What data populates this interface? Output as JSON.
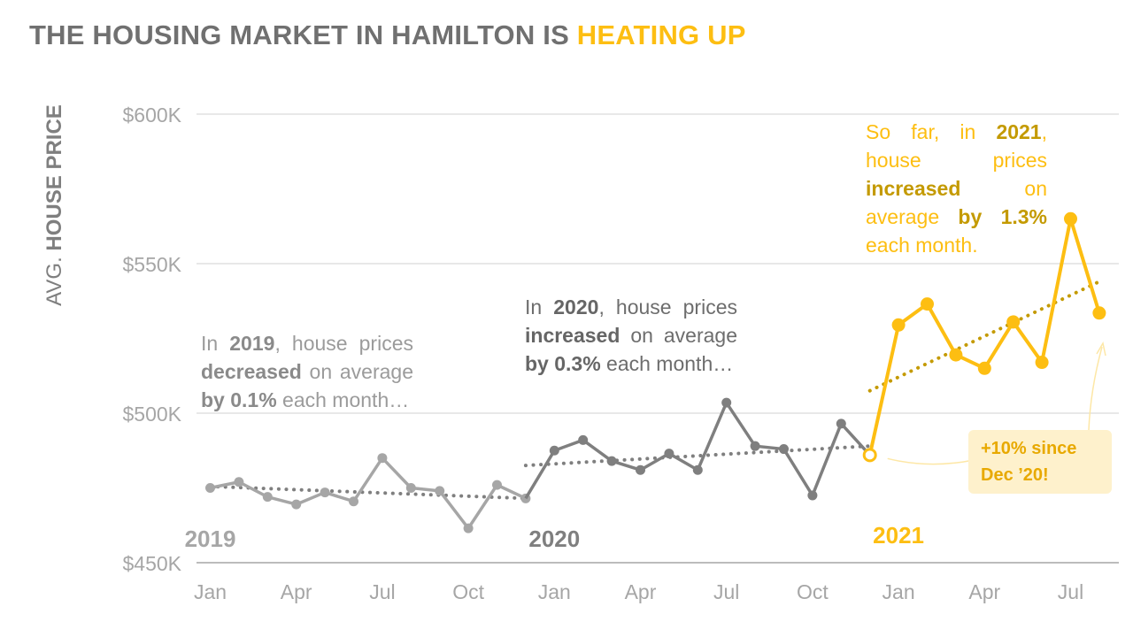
{
  "title": {
    "part1": "THE HOUSING MARKET IN HAMILTON IS ",
    "part2": "HEATING UP"
  },
  "colors": {
    "y2019": "#A6A6A6",
    "y2020": "#7F7F7F",
    "y2021": "#FDBE12",
    "grid": "#D9D9D9",
    "axis": "#A6A6A6"
  },
  "ylabel": {
    "prefix": "AVG. ",
    "bold": "HOUSE PRICE"
  },
  "annotations": {
    "y2019": {
      "t1": "In ",
      "b1": "2019",
      "t2": ", house prices ",
      "b2": "decreased",
      "t3": " on average ",
      "b3": "by 0.1%",
      "t4": " each month…"
    },
    "y2020": {
      "t1": "In ",
      "b1": "2020",
      "t2": ", house prices ",
      "b2": "increased",
      "t3": " on average ",
      "b3": "by 0.3%",
      "t4": " each month…"
    },
    "y2021": {
      "t1": "So far, in ",
      "b1": "2021",
      "t2": ", house prices ",
      "b2": "increased",
      "t3": " on average ",
      "b3": "by 1.3%",
      "t4": " each month."
    }
  },
  "callout": {
    "line1": "+10% since",
    "line2": "Dec ’20!"
  },
  "chart_data": {
    "type": "line",
    "title": "THE HOUSING MARKET IN HAMILTON IS HEATING UP",
    "ylabel": "AVG. HOUSE PRICE",
    "xlabel": "",
    "ylim": [
      450000,
      600000
    ],
    "yticks": [
      450000,
      500000,
      550000,
      600000
    ],
    "ytick_labels": [
      "$450K",
      "$500K",
      "$550K",
      "$600K"
    ],
    "x_tick_labels": [
      "Jan",
      "Apr",
      "Jul",
      "Oct",
      "Jan",
      "Apr",
      "Jul",
      "Oct",
      "Jan",
      "Apr",
      "Jul"
    ],
    "x_tick_months": [
      "2019-01",
      "2019-04",
      "2019-07",
      "2019-10",
      "2020-01",
      "2020-04",
      "2020-07",
      "2020-10",
      "2021-01",
      "2021-04",
      "2021-07"
    ],
    "x_range": [
      "2019-01",
      "2021-08"
    ],
    "grid": true,
    "series": [
      {
        "name": "2019",
        "x": [
          "2019-01",
          "2019-02",
          "2019-03",
          "2019-04",
          "2019-05",
          "2019-06",
          "2019-07",
          "2019-08",
          "2019-09",
          "2019-10",
          "2019-11",
          "2019-12"
        ],
        "values": [
          475000,
          477000,
          472000,
          469500,
          473500,
          470500,
          485000,
          475000,
          474000,
          461500,
          476000,
          471500
        ]
      },
      {
        "name": "2020",
        "x": [
          "2019-12",
          "2020-01",
          "2020-02",
          "2020-03",
          "2020-04",
          "2020-05",
          "2020-06",
          "2020-07",
          "2020-08",
          "2020-09",
          "2020-10",
          "2020-11",
          "2020-12"
        ],
        "values": [
          471500,
          487500,
          491000,
          484000,
          481000,
          486500,
          481000,
          503500,
          489000,
          488000,
          472500,
          496500,
          486000
        ]
      },
      {
        "name": "2021",
        "x": [
          "2020-12",
          "2021-01",
          "2021-02",
          "2021-03",
          "2021-04",
          "2021-05",
          "2021-06",
          "2021-07",
          "2021-08"
        ],
        "values": [
          486000,
          529500,
          536500,
          519500,
          515000,
          530500,
          517000,
          565000,
          533500
        ]
      }
    ],
    "trendlines": [
      {
        "series": "2019",
        "from": {
          "x": "2019-01",
          "y": 475500
        },
        "to": {
          "x": "2019-12",
          "y": 471500
        }
      },
      {
        "series": "2020",
        "from": {
          "x": "2019-12",
          "y": 482500
        },
        "to": {
          "x": "2020-12",
          "y": 489000
        }
      },
      {
        "series": "2021",
        "from": {
          "x": "2020-12",
          "y": 507500
        },
        "to": {
          "x": "2021-08",
          "y": 544000
        }
      }
    ],
    "year_labels": [
      {
        "text": "2019",
        "series": "2019"
      },
      {
        "text": "2020",
        "series": "2020"
      },
      {
        "text": "2021",
        "series": "2021"
      }
    ]
  }
}
